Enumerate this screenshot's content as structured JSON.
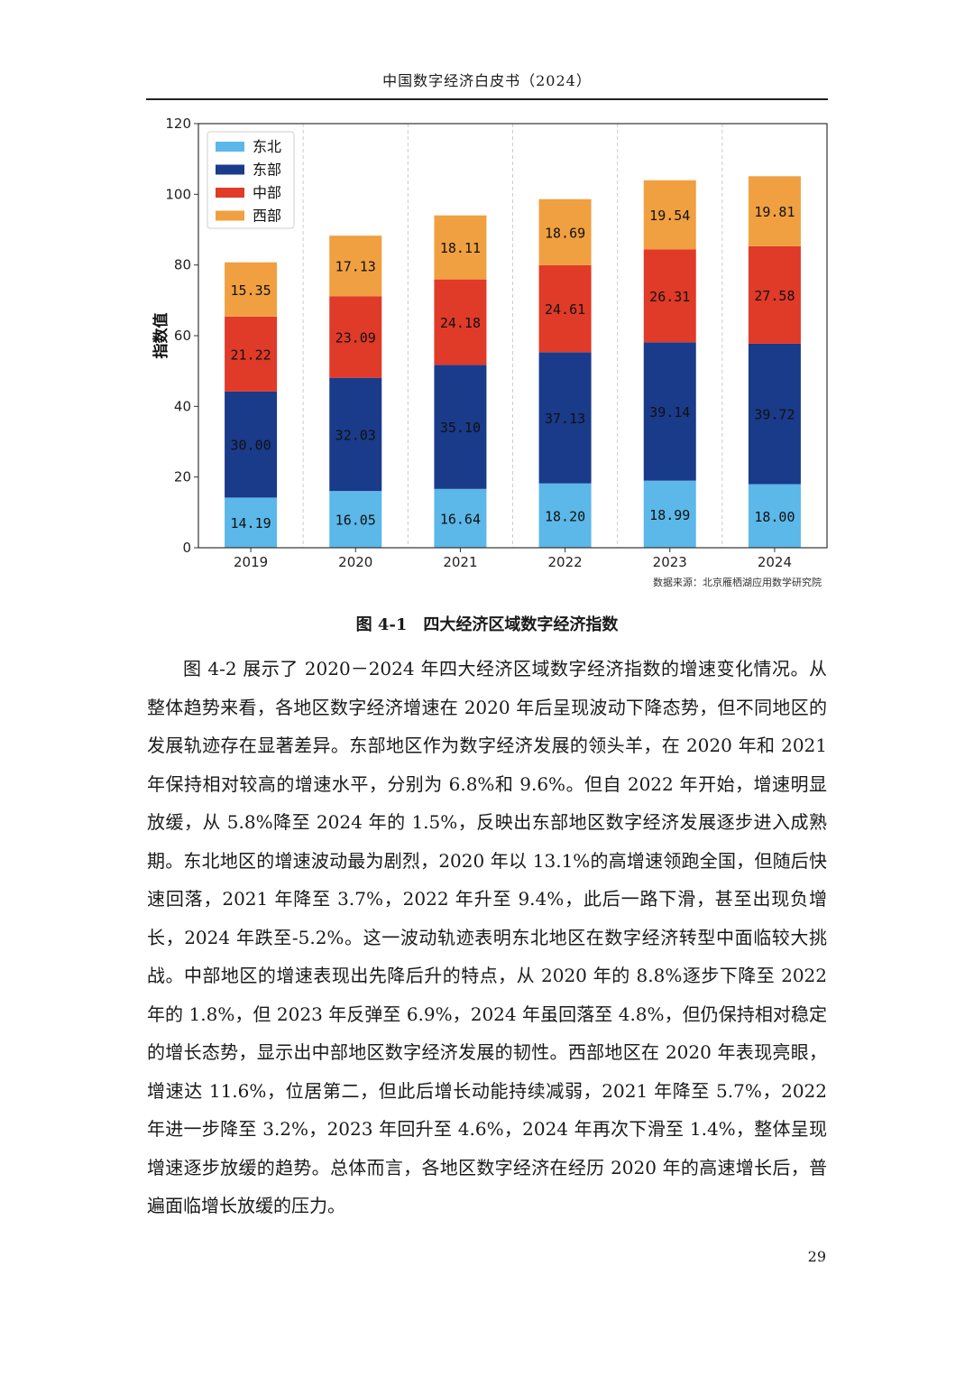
{
  "header": {
    "title": "中国数字经济白皮书（2024）"
  },
  "figure": {
    "caption": "图 4-1　四大经济区域数字经济指数",
    "source_note": "数据来源：北京雁栖湖应用数学研究院"
  },
  "chart_data": {
    "type": "bar",
    "stacked": true,
    "title": "",
    "xlabel": "",
    "ylabel": "指数值",
    "categories": [
      "2019",
      "2020",
      "2021",
      "2022",
      "2023",
      "2024"
    ],
    "ylim": [
      0,
      120
    ],
    "yticks": [
      0,
      20,
      40,
      60,
      80,
      100,
      120
    ],
    "legend_position": "top-left",
    "grid": "vertical-dashed",
    "series": [
      {
        "name": "东北",
        "color": "#5bb8e8",
        "values": [
          14.19,
          16.05,
          16.64,
          18.2,
          18.99,
          18.0
        ],
        "labels": [
          "14.19",
          "16.05",
          "16.64",
          "18.20",
          "18.99",
          "18.00"
        ]
      },
      {
        "name": "东部",
        "color": "#1a3a8a",
        "values": [
          30.0,
          32.03,
          35.1,
          37.13,
          39.14,
          39.72
        ],
        "labels": [
          "30.00",
          "32.03",
          "35.10",
          "37.13",
          "39.14",
          "39.72"
        ]
      },
      {
        "name": "中部",
        "color": "#e03a28",
        "values": [
          21.22,
          23.09,
          24.18,
          24.61,
          26.31,
          27.58
        ],
        "labels": [
          "21.22",
          "23.09",
          "24.18",
          "24.61",
          "26.31",
          "27.58"
        ]
      },
      {
        "name": "西部",
        "color": "#f0a040",
        "values": [
          15.35,
          17.13,
          18.11,
          18.69,
          19.54,
          19.81
        ],
        "labels": [
          "15.35",
          "17.13",
          "18.11",
          "18.69",
          "19.54",
          "19.81"
        ]
      }
    ]
  },
  "body": {
    "paragraph": "图 4-2 展示了 2020－2024 年四大经济区域数字经济指数的增速变化情况。从整体趋势来看，各地区数字经济增速在 2020 年后呈现波动下降态势，但不同地区的发展轨迹存在显著差异。东部地区作为数字经济发展的领头羊，在 2020 年和 2021 年保持相对较高的增速水平，分别为 6.8%和 9.6%。但自 2022 年开始，增速明显放缓，从 5.8%降至 2024 年的 1.5%，反映出东部地区数字经济发展逐步进入成熟期。东北地区的增速波动最为剧烈，2020 年以 13.1%的高增速领跑全国，但随后快速回落，2021 年降至 3.7%，2022 年升至 9.4%，此后一路下滑，甚至出现负增长，2024 年跌至-5.2%。这一波动轨迹表明东北地区在数字经济转型中面临较大挑战。中部地区的增速表现出先降后升的特点，从 2020 年的 8.8%逐步下降至 2022 年的 1.8%，但 2023 年反弹至 6.9%，2024 年虽回落至 4.8%，但仍保持相对稳定的增长态势，显示出中部地区数字经济发展的韧性。西部地区在 2020 年表现亮眼，增速达 11.6%，位居第二，但此后增长动能持续减弱，2021 年降至 5.7%，2022 年进一步降至 3.2%，2023 年回升至 4.6%，2024 年再次下滑至 1.4%，整体呈现增速逐步放缓的趋势。总体而言，各地区数字经济在经历 2020 年的高速增长后，普遍面临增长放缓的压力。"
  },
  "footer": {
    "page_number": "29"
  }
}
